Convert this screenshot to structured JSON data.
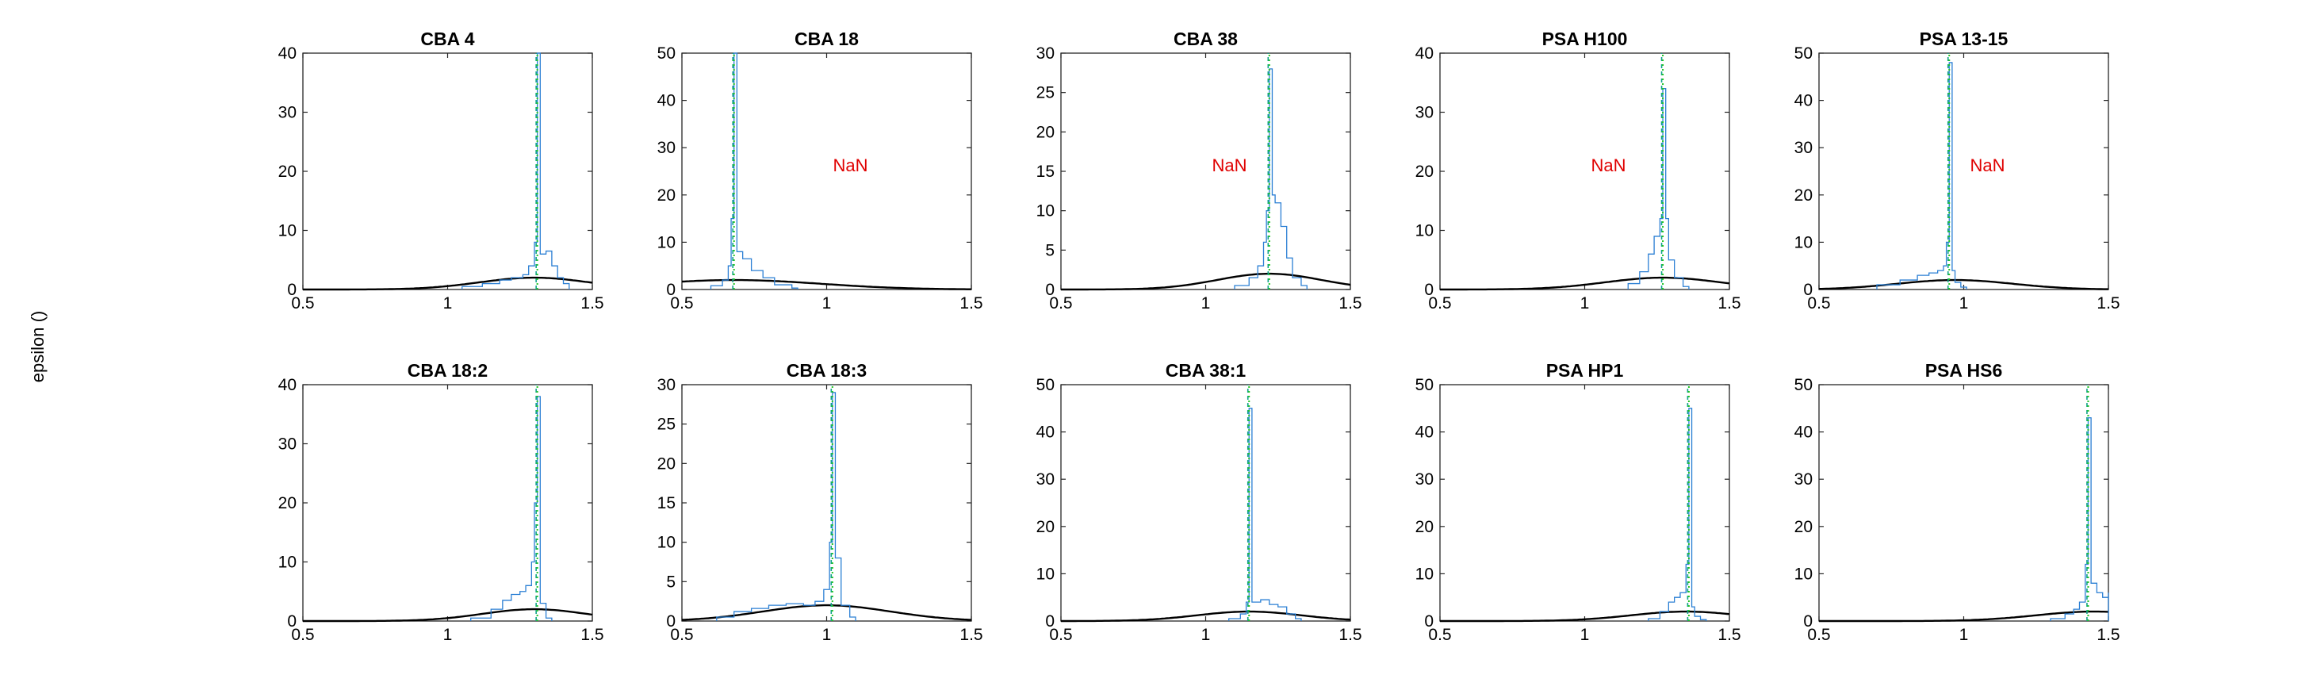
{
  "figure": {
    "ylabel": "epsilon ()"
  },
  "colors": {
    "histogram": "#2a7fd4",
    "fit": "#000000",
    "peak": "#22c522",
    "median": "#11a38a",
    "annotation": "#e00000"
  },
  "chart_data": [
    {
      "type": "line",
      "title": "CBA 4",
      "xlim": [
        0.5,
        1.5
      ],
      "ylim": [
        0,
        40
      ],
      "xticks": [
        0.5,
        1,
        1.5
      ],
      "yticks": [
        0,
        10,
        20,
        30,
        40
      ],
      "peak_x": 1.31,
      "peak_y": 40,
      "annotation": "",
      "series": [
        {
          "name": "histogram",
          "points": [
            [
              1.05,
              0.5
            ],
            [
              1.12,
              1.0
            ],
            [
              1.18,
              1.6
            ],
            [
              1.22,
              2.0
            ],
            [
              1.26,
              2.5
            ],
            [
              1.28,
              4
            ],
            [
              1.3,
              8
            ],
            [
              1.31,
              40
            ],
            [
              1.32,
              6
            ],
            [
              1.34,
              6.5
            ],
            [
              1.36,
              4
            ],
            [
              1.38,
              2
            ],
            [
              1.4,
              1
            ]
          ]
        },
        {
          "name": "fit",
          "mu": 1.3,
          "sigma": 0.19,
          "max": 2.0
        }
      ]
    },
    {
      "type": "line",
      "title": "CBA 18",
      "xlim": [
        0.5,
        1.5
      ],
      "ylim": [
        0,
        50
      ],
      "xticks": [
        0.5,
        1,
        1.5
      ],
      "yticks": [
        0,
        10,
        20,
        30,
        40,
        50
      ],
      "peak_x": 0.68,
      "peak_y": 50,
      "annotation": "NaN",
      "series": [
        {
          "name": "histogram",
          "points": [
            [
              0.6,
              0.8
            ],
            [
              0.64,
              2
            ],
            [
              0.66,
              5
            ],
            [
              0.67,
              15
            ],
            [
              0.68,
              50
            ],
            [
              0.69,
              8
            ],
            [
              0.71,
              6.5
            ],
            [
              0.74,
              4
            ],
            [
              0.78,
              2.5
            ],
            [
              0.82,
              1
            ],
            [
              0.88,
              0.3
            ]
          ]
        },
        {
          "name": "fit",
          "mu": 0.68,
          "sigma": 0.3,
          "max": 2.0
        }
      ]
    },
    {
      "type": "line",
      "title": "CBA 38",
      "xlim": [
        0.5,
        1.5
      ],
      "ylim": [
        0,
        30
      ],
      "xticks": [
        0.5,
        1,
        1.5
      ],
      "yticks": [
        0,
        5,
        10,
        15,
        20,
        25,
        30
      ],
      "peak_x": 1.22,
      "peak_y": 30,
      "annotation": "NaN",
      "series": [
        {
          "name": "histogram",
          "points": [
            [
              1.1,
              0.5
            ],
            [
              1.15,
              1.5
            ],
            [
              1.18,
              3
            ],
            [
              1.2,
              6
            ],
            [
              1.21,
              10
            ],
            [
              1.22,
              28
            ],
            [
              1.23,
              12
            ],
            [
              1.24,
              11
            ],
            [
              1.26,
              8
            ],
            [
              1.28,
              4
            ],
            [
              1.3,
              1.5
            ],
            [
              1.33,
              0.5
            ]
          ]
        },
        {
          "name": "fit",
          "mu": 1.22,
          "sigma": 0.18,
          "max": 2.0
        }
      ]
    },
    {
      "type": "line",
      "title": "PSA H100",
      "xlim": [
        0.5,
        1.5
      ],
      "ylim": [
        0,
        40
      ],
      "xticks": [
        0.5,
        1,
        1.5
      ],
      "yticks": [
        0,
        10,
        20,
        30,
        40
      ],
      "peak_x": 1.27,
      "peak_y": 40,
      "annotation": "NaN",
      "series": [
        {
          "name": "histogram",
          "points": [
            [
              1.15,
              1
            ],
            [
              1.19,
              3
            ],
            [
              1.22,
              6
            ],
            [
              1.24,
              9
            ],
            [
              1.26,
              12
            ],
            [
              1.27,
              34
            ],
            [
              1.28,
              12
            ],
            [
              1.29,
              5
            ],
            [
              1.31,
              2
            ],
            [
              1.34,
              0.5
            ]
          ]
        },
        {
          "name": "fit",
          "mu": 1.27,
          "sigma": 0.2,
          "max": 2.0
        }
      ]
    },
    {
      "type": "line",
      "title": "PSA 13-15",
      "xlim": [
        0.5,
        1.5
      ],
      "ylim": [
        0,
        50
      ],
      "xticks": [
        0.5,
        1,
        1.5
      ],
      "yticks": [
        0,
        10,
        20,
        30,
        40,
        50
      ],
      "peak_x": 0.95,
      "peak_y": 50,
      "annotation": "NaN",
      "series": [
        {
          "name": "histogram",
          "points": [
            [
              0.7,
              1
            ],
            [
              0.78,
              2
            ],
            [
              0.84,
              3
            ],
            [
              0.88,
              3.5
            ],
            [
              0.91,
              4
            ],
            [
              0.93,
              5
            ],
            [
              0.94,
              10
            ],
            [
              0.95,
              48
            ],
            [
              0.96,
              4
            ],
            [
              0.97,
              1.5
            ],
            [
              0.99,
              0.5
            ]
          ]
        },
        {
          "name": "fit",
          "mu": 0.97,
          "sigma": 0.2,
          "max": 2.0
        }
      ]
    },
    {
      "type": "line",
      "title": "CBA 18:2",
      "xlim": [
        0.5,
        1.5
      ],
      "ylim": [
        0,
        40
      ],
      "xticks": [
        0.5,
        1,
        1.5
      ],
      "yticks": [
        0,
        10,
        20,
        30,
        40
      ],
      "peak_x": 1.31,
      "peak_y": 40,
      "annotation": "",
      "series": [
        {
          "name": "histogram",
          "points": [
            [
              1.08,
              0.5
            ],
            [
              1.15,
              2
            ],
            [
              1.19,
              3.5
            ],
            [
              1.22,
              4.5
            ],
            [
              1.25,
              5
            ],
            [
              1.27,
              6
            ],
            [
              1.29,
              10
            ],
            [
              1.3,
              20
            ],
            [
              1.31,
              38
            ],
            [
              1.32,
              3
            ],
            [
              1.34,
              0.5
            ]
          ]
        },
        {
          "name": "fit",
          "mu": 1.3,
          "sigma": 0.18,
          "max": 2.0
        }
      ]
    },
    {
      "type": "line",
      "title": "CBA 18:3",
      "xlim": [
        0.5,
        1.5
      ],
      "ylim": [
        0,
        30
      ],
      "xticks": [
        0.5,
        1,
        1.5
      ],
      "yticks": [
        0,
        5,
        10,
        15,
        20,
        25,
        30
      ],
      "peak_x": 1.02,
      "peak_y": 30,
      "annotation": "",
      "series": [
        {
          "name": "histogram",
          "points": [
            [
              0.62,
              0.5
            ],
            [
              0.68,
              1.2
            ],
            [
              0.74,
              1.6
            ],
            [
              0.8,
              2.0
            ],
            [
              0.86,
              2.2
            ],
            [
              0.92,
              2.0
            ],
            [
              0.96,
              2.5
            ],
            [
              0.99,
              4
            ],
            [
              1.01,
              10
            ],
            [
              1.02,
              29
            ],
            [
              1.03,
              8
            ],
            [
              1.05,
              2
            ],
            [
              1.08,
              0.5
            ]
          ]
        },
        {
          "name": "fit",
          "mu": 1.0,
          "sigma": 0.22,
          "max": 2.0
        }
      ]
    },
    {
      "type": "line",
      "title": "CBA 38:1",
      "xlim": [
        0.5,
        1.5
      ],
      "ylim": [
        0,
        50
      ],
      "xticks": [
        0.5,
        1,
        1.5
      ],
      "yticks": [
        0,
        10,
        20,
        30,
        40,
        50
      ],
      "peak_x": 1.15,
      "peak_y": 50,
      "annotation": "",
      "series": [
        {
          "name": "histogram",
          "points": [
            [
              1.08,
              0.5
            ],
            [
              1.12,
              1.5
            ],
            [
              1.14,
              4
            ],
            [
              1.15,
              45
            ],
            [
              1.16,
              4
            ],
            [
              1.19,
              4.5
            ],
            [
              1.22,
              3.5
            ],
            [
              1.25,
              3
            ],
            [
              1.28,
              1.5
            ],
            [
              1.31,
              0.5
            ]
          ]
        },
        {
          "name": "fit",
          "mu": 1.15,
          "sigma": 0.18,
          "max": 2.0
        }
      ]
    },
    {
      "type": "line",
      "title": "PSA HP1",
      "xlim": [
        0.5,
        1.5
      ],
      "ylim": [
        0,
        50
      ],
      "xticks": [
        0.5,
        1,
        1.5
      ],
      "yticks": [
        0,
        10,
        20,
        30,
        40,
        50
      ],
      "peak_x": 1.36,
      "peak_y": 50,
      "annotation": "",
      "series": [
        {
          "name": "histogram",
          "points": [
            [
              1.22,
              0.5
            ],
            [
              1.26,
              2
            ],
            [
              1.29,
              4
            ],
            [
              1.31,
              5
            ],
            [
              1.33,
              6
            ],
            [
              1.35,
              12
            ],
            [
              1.36,
              45
            ],
            [
              1.37,
              3
            ],
            [
              1.38,
              1
            ],
            [
              1.4,
              0.3
            ]
          ]
        },
        {
          "name": "fit",
          "mu": 1.35,
          "sigma": 0.19,
          "max": 2.0
        }
      ]
    },
    {
      "type": "line",
      "title": "PSA HS6",
      "xlim": [
        0.5,
        1.5
      ],
      "ylim": [
        0,
        50
      ],
      "xticks": [
        0.5,
        1,
        1.5
      ],
      "yticks": [
        0,
        10,
        20,
        30,
        40,
        50
      ],
      "peak_x": 1.43,
      "peak_y": 50,
      "annotation": "",
      "series": [
        {
          "name": "histogram",
          "points": [
            [
              1.3,
              0.5
            ],
            [
              1.35,
              1.5
            ],
            [
              1.38,
              2.5
            ],
            [
              1.4,
              4
            ],
            [
              1.42,
              12
            ],
            [
              1.43,
              43
            ],
            [
              1.44,
              8
            ],
            [
              1.46,
              6
            ],
            [
              1.48,
              5
            ],
            [
              1.5,
              6
            ]
          ]
        },
        {
          "name": "fit",
          "mu": 1.45,
          "sigma": 0.2,
          "max": 2.0
        }
      ]
    }
  ]
}
